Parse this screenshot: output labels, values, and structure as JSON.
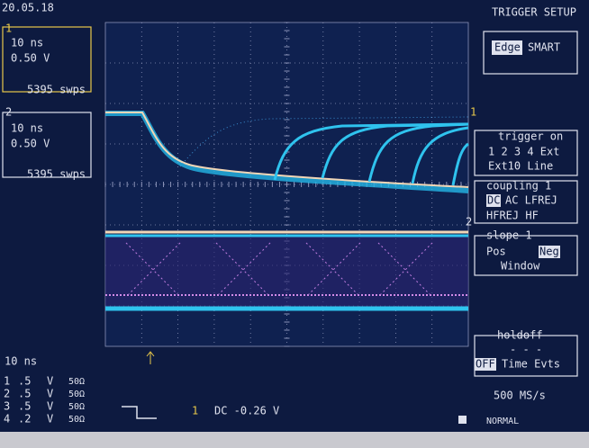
{
  "header": {
    "time": "20.05.18",
    "menu_title": "TRIGGER SETUP"
  },
  "channels": [
    {
      "number": "1",
      "timebase": "10 ns",
      "volts": "0.50 V",
      "sweeps": "5395 swps"
    },
    {
      "number": "2",
      "timebase": "10 ns",
      "volts": "0.50 V",
      "sweeps": "5395 swps"
    }
  ],
  "trace_markers": [
    "1",
    "2"
  ],
  "menu": {
    "type": {
      "selected": "Edge",
      "other": "SMART"
    },
    "trigger_on": {
      "title": "trigger on",
      "sources": "1 2 3 4 Ext",
      "extra": "Ext10 Line"
    },
    "coupling": {
      "title": "coupling 1",
      "selected": "DC",
      "options": "AC LFREJ",
      "more": "HFREJ HF"
    },
    "slope": {
      "title": "slope 1",
      "pos": "Pos",
      "neg": "Neg",
      "window": "Window"
    },
    "holdoff": {
      "title": "holdoff",
      "value": "- - -",
      "selected": "OFF",
      "options": "Time Evts"
    }
  },
  "status": {
    "timebase": "10 ns",
    "channel_rows": [
      [
        "1",
        ".5",
        "V",
        "50Ω"
      ],
      [
        "2",
        ".5",
        "V",
        "50Ω"
      ],
      [
        "3",
        ".5",
        "V",
        "50Ω"
      ],
      [
        "4",
        ".2",
        "V",
        "50Ω"
      ]
    ],
    "trigger_channel": "1",
    "trigger_level": "DC -0.26 V",
    "sample_rate": "500 MS/s",
    "mode": "NORMAL"
  }
}
